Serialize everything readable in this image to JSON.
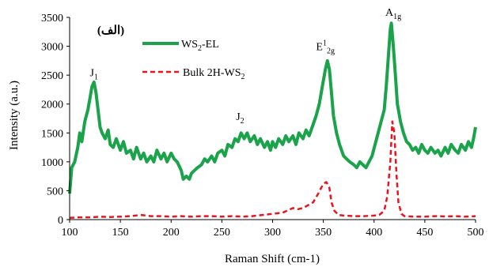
{
  "chart_data": {
    "type": "line",
    "panel_label": "(الف)",
    "xlabel": "Raman Shift (cm-1)",
    "ylabel": "Intensity (a.u.)",
    "xlim": [
      100,
      500
    ],
    "ylim": [
      0,
      3500
    ],
    "xticks": [
      "100",
      "150",
      "200",
      "250",
      "300",
      "350",
      "400",
      "450",
      "500"
    ],
    "yticks": [
      "0",
      "500",
      "1000",
      "1500",
      "2000",
      "2500",
      "3000",
      "3500"
    ],
    "grid": false,
    "legend_position": "top-left",
    "series": [
      {
        "name": "WS2-EL",
        "label_main": "WS",
        "label_sub": "2",
        "label_rest": "-EL",
        "color": "#1aa34a",
        "style": "solid",
        "points": [
          [
            100,
            450
          ],
          [
            102,
            900
          ],
          [
            105,
            1000
          ],
          [
            108,
            1250
          ],
          [
            110,
            1500
          ],
          [
            112,
            1350
          ],
          [
            115,
            1700
          ],
          [
            118,
            1900
          ],
          [
            120,
            2100
          ],
          [
            122,
            2300
          ],
          [
            124,
            2380
          ],
          [
            126,
            2200
          ],
          [
            128,
            1900
          ],
          [
            130,
            1600
          ],
          [
            132,
            1500
          ],
          [
            135,
            1400
          ],
          [
            138,
            1550
          ],
          [
            140,
            1300
          ],
          [
            143,
            1250
          ],
          [
            146,
            1400
          ],
          [
            150,
            1200
          ],
          [
            153,
            1350
          ],
          [
            156,
            1150
          ],
          [
            160,
            1200
          ],
          [
            163,
            1050
          ],
          [
            166,
            1250
          ],
          [
            170,
            1050
          ],
          [
            173,
            1150
          ],
          [
            176,
            1000
          ],
          [
            180,
            1100
          ],
          [
            183,
            1000
          ],
          [
            186,
            1200
          ],
          [
            190,
            1050
          ],
          [
            193,
            1150
          ],
          [
            196,
            1000
          ],
          [
            200,
            1150
          ],
          [
            203,
            1050
          ],
          [
            206,
            1000
          ],
          [
            210,
            850
          ],
          [
            212,
            700
          ],
          [
            215,
            750
          ],
          [
            218,
            700
          ],
          [
            220,
            800
          ],
          [
            223,
            850
          ],
          [
            226,
            900
          ],
          [
            230,
            950
          ],
          [
            233,
            1050
          ],
          [
            236,
            1000
          ],
          [
            240,
            1100
          ],
          [
            243,
            1000
          ],
          [
            246,
            1150
          ],
          [
            250,
            1200
          ],
          [
            253,
            1100
          ],
          [
            256,
            1300
          ],
          [
            260,
            1250
          ],
          [
            263,
            1400
          ],
          [
            266,
            1350
          ],
          [
            269,
            1500
          ],
          [
            272,
            1400
          ],
          [
            275,
            1500
          ],
          [
            278,
            1350
          ],
          [
            282,
            1450
          ],
          [
            285,
            1300
          ],
          [
            288,
            1400
          ],
          [
            292,
            1250
          ],
          [
            295,
            1350
          ],
          [
            298,
            1200
          ],
          [
            300,
            1350
          ],
          [
            303,
            1250
          ],
          [
            306,
            1400
          ],
          [
            310,
            1300
          ],
          [
            313,
            1450
          ],
          [
            316,
            1350
          ],
          [
            320,
            1450
          ],
          [
            323,
            1300
          ],
          [
            326,
            1500
          ],
          [
            330,
            1400
          ],
          [
            333,
            1550
          ],
          [
            336,
            1450
          ],
          [
            340,
            1650
          ],
          [
            343,
            1800
          ],
          [
            346,
            2000
          ],
          [
            349,
            2300
          ],
          [
            352,
            2600
          ],
          [
            354,
            2750
          ],
          [
            356,
            2600
          ],
          [
            358,
            2200
          ],
          [
            360,
            1800
          ],
          [
            363,
            1500
          ],
          [
            366,
            1300
          ],
          [
            370,
            1100
          ],
          [
            373,
            1050
          ],
          [
            376,
            1000
          ],
          [
            380,
            950
          ],
          [
            383,
            900
          ],
          [
            386,
            1000
          ],
          [
            389,
            950
          ],
          [
            392,
            900
          ],
          [
            395,
            1000
          ],
          [
            398,
            1100
          ],
          [
            401,
            1300
          ],
          [
            404,
            1500
          ],
          [
            407,
            1700
          ],
          [
            410,
            1900
          ],
          [
            412,
            2300
          ],
          [
            414,
            2800
          ],
          [
            416,
            3300
          ],
          [
            417,
            3400
          ],
          [
            419,
            3000
          ],
          [
            421,
            2500
          ],
          [
            423,
            2000
          ],
          [
            426,
            1700
          ],
          [
            429,
            1500
          ],
          [
            432,
            1350
          ],
          [
            435,
            1300
          ],
          [
            438,
            1200
          ],
          [
            441,
            1250
          ],
          [
            444,
            1150
          ],
          [
            447,
            1300
          ],
          [
            450,
            1200
          ],
          [
            453,
            1150
          ],
          [
            456,
            1250
          ],
          [
            460,
            1150
          ],
          [
            463,
            1200
          ],
          [
            466,
            1100
          ],
          [
            470,
            1250
          ],
          [
            473,
            1150
          ],
          [
            476,
            1300
          ],
          [
            480,
            1200
          ],
          [
            483,
            1150
          ],
          [
            486,
            1300
          ],
          [
            490,
            1200
          ],
          [
            493,
            1350
          ],
          [
            496,
            1250
          ],
          [
            498,
            1400
          ],
          [
            500,
            1600
          ]
        ]
      },
      {
        "name": "Bulk 2H-WS2",
        "label_main": "Bulk 2H-WS",
        "label_sub": "2",
        "label_rest": "",
        "color": "#e8141e",
        "style": "dashed",
        "points": [
          [
            100,
            30
          ],
          [
            110,
            40
          ],
          [
            120,
            40
          ],
          [
            130,
            50
          ],
          [
            140,
            45
          ],
          [
            150,
            50
          ],
          [
            160,
            60
          ],
          [
            170,
            80
          ],
          [
            180,
            60
          ],
          [
            190,
            60
          ],
          [
            200,
            50
          ],
          [
            210,
            60
          ],
          [
            220,
            50
          ],
          [
            230,
            60
          ],
          [
            240,
            60
          ],
          [
            250,
            50
          ],
          [
            260,
            60
          ],
          [
            270,
            50
          ],
          [
            280,
            60
          ],
          [
            290,
            80
          ],
          [
            300,
            100
          ],
          [
            310,
            120
          ],
          [
            320,
            200
          ],
          [
            325,
            180
          ],
          [
            330,
            200
          ],
          [
            335,
            250
          ],
          [
            340,
            300
          ],
          [
            345,
            450
          ],
          [
            350,
            620
          ],
          [
            353,
            650
          ],
          [
            356,
            550
          ],
          [
            358,
            300
          ],
          [
            361,
            150
          ],
          [
            365,
            80
          ],
          [
            370,
            70
          ],
          [
            380,
            60
          ],
          [
            390,
            60
          ],
          [
            400,
            70
          ],
          [
            405,
            80
          ],
          [
            410,
            150
          ],
          [
            413,
            400
          ],
          [
            416,
            1000
          ],
          [
            418,
            1700
          ],
          [
            420,
            1500
          ],
          [
            422,
            800
          ],
          [
            424,
            300
          ],
          [
            427,
            100
          ],
          [
            430,
            60
          ],
          [
            440,
            50
          ],
          [
            450,
            50
          ],
          [
            460,
            60
          ],
          [
            470,
            55
          ],
          [
            480,
            60
          ],
          [
            490,
            50
          ],
          [
            500,
            60
          ]
        ]
      }
    ],
    "annotations": [
      {
        "id": "j1",
        "main": "J",
        "sub": "1",
        "sup": "",
        "sub2": "",
        "x": 124,
        "y": 2480
      },
      {
        "id": "j2",
        "main": "J",
        "sub": "2",
        "sup": "",
        "sub2": "",
        "x": 268,
        "y": 1720
      },
      {
        "id": "e",
        "main": "E",
        "sub": "",
        "sup": "1",
        "sub2": "2g",
        "x": 352,
        "y": 2930
      },
      {
        "id": "a",
        "main": "A",
        "sub": "1g",
        "sup": "",
        "sub2": "",
        "x": 419,
        "y": 3530
      }
    ]
  }
}
